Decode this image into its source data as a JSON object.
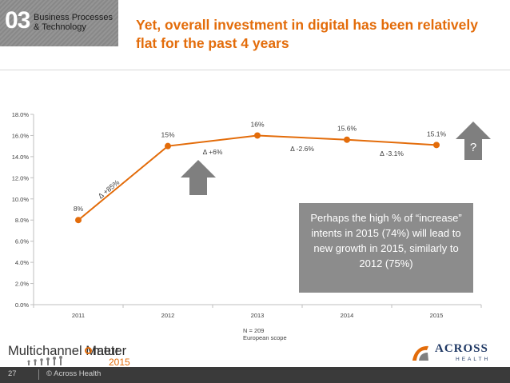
{
  "header": {
    "section_number": "03",
    "section_line1": "Business Processes",
    "section_line2": "& Technology",
    "title": "Yet, overall investment in digital has been relatively flat for the past 4 years"
  },
  "chart_data": {
    "type": "line",
    "title": "",
    "xlabel": "",
    "ylabel": "",
    "categories": [
      "2011",
      "2012",
      "2013",
      "2014",
      "2015"
    ],
    "series": [
      {
        "name": "Investment in digital",
        "values": [
          8.0,
          15.0,
          16.0,
          15.6,
          15.1
        ]
      }
    ],
    "data_labels": [
      "8%",
      "15%",
      "16%",
      "15.6%",
      "15.1%"
    ],
    "ylim": [
      0,
      18
    ],
    "y_ticks": [
      0,
      2,
      4,
      6,
      8,
      10,
      12,
      14,
      16,
      18
    ],
    "y_tick_labels": [
      "0.0%",
      "2.0%",
      "4.0%",
      "6.0%",
      "8.0%",
      "10.0%",
      "12.0%",
      "14.0%",
      "16.0%",
      "18.0%"
    ],
    "grid": false,
    "line_color": "#e36c0a",
    "delta_annotations": [
      {
        "text": "Δ +85%",
        "between": [
          "2011",
          "2012"
        ]
      },
      {
        "text": "Δ +6%",
        "between": [
          "2012",
          "2013"
        ]
      },
      {
        "text": "Δ -2.6%",
        "between": [
          "2013",
          "2014"
        ]
      },
      {
        "text": "Δ -3.1%",
        "between": [
          "2014",
          "2015"
        ]
      }
    ]
  },
  "annotations": {
    "question": "?",
    "callout": "Perhaps the high % of “increase” intents in 2015 (74%)  will lead to new growth in 2015, similarly to  2012 (75%)",
    "note_line1": "N = 209",
    "note_line2": "European scope"
  },
  "footer": {
    "brand_left_a": "Multichannel Matur",
    "brand_left_b": "meter",
    "brand_left_year": "2015",
    "brand_right": "ACROSS",
    "brand_right_sub": "HEALTH",
    "page_number": "27",
    "copyright": "© Across Health"
  },
  "colors": {
    "accent": "#e36c0a",
    "arrow": "#7f7f7f",
    "callout": "#8c8c8c",
    "footer": "#3a3a3a",
    "brand": "#1f3864"
  },
  "icons": {
    "up_arrow": "arrow-up-icon",
    "across_logo": "across-health-logo-icon"
  }
}
